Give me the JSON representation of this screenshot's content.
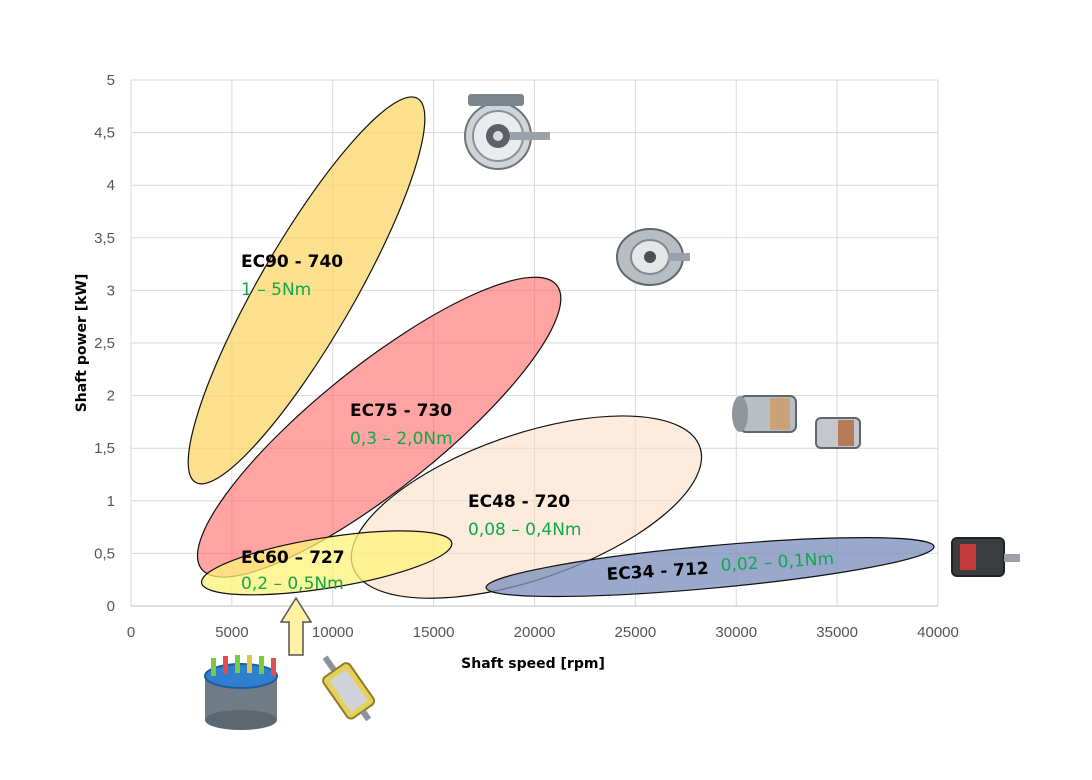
{
  "chart_data": {
    "type": "scatter",
    "title": "",
    "xlabel": "Shaft speed [rpm]",
    "ylabel": "Shaft power [kW]",
    "xlim": [
      0,
      40000
    ],
    "ylim": [
      0,
      5
    ],
    "x_ticks": [
      "0",
      "5000",
      "10000",
      "15000",
      "20000",
      "25000",
      "30000",
      "35000",
      "40000"
    ],
    "y_ticks": [
      "0",
      "0,5",
      "1",
      "1,5",
      "2",
      "2,5",
      "3",
      "3,5",
      "4",
      "4,5",
      "5"
    ],
    "grid": true,
    "series": [
      {
        "model": "EC90 - 740",
        "torque": "1 – 5Nm",
        "color": "#fbd463",
        "alpha": 0.72,
        "center": [
          8700,
          3.0
        ],
        "p1": [
          4200,
          1.15
        ],
        "p2": [
          15200,
          4.8
        ],
        "semi_minor_rpm": 2350
      },
      {
        "model": "EC75 - 730",
        "torque": "0,3 – 2,0Nm",
        "color": "#ff6b6b",
        "alpha": 0.62,
        "center": [
          12300,
          1.7
        ],
        "p1": [
          3400,
          0.42
        ],
        "p2": [
          21000,
          3.12
        ],
        "semi_minor_rpm": 3050
      },
      {
        "model": "EC48 - 720",
        "torque": "0,08 – 0,4Nm",
        "color": "#fbdcc2",
        "alpha": 0.55,
        "center": [
          19600,
          0.94
        ],
        "p1": [
          13100,
          0.38
        ],
        "p2": [
          30300,
          1.52
        ],
        "semi_minor_rpm": 3600
      },
      {
        "model": "EC34 - 712",
        "torque": "0,02 – 0,1Nm",
        "color": "#7e91bd",
        "alpha": 0.78,
        "center": [
          28700,
          0.37
        ],
        "p1": [
          17600,
          0.17
        ],
        "p2": [
          39800,
          0.56
        ],
        "semi_minor_rpm": 1050
      },
      {
        "model": "EC60 – 727",
        "torque": "0,2 – 0,5Nm",
        "color": "#fff27a",
        "alpha": 0.75,
        "center": [
          9700,
          0.41
        ],
        "p1": [
          2900,
          0.28
        ],
        "p2": [
          15300,
          0.66
        ],
        "semi_minor_rpm": 1250
      }
    ]
  }
}
